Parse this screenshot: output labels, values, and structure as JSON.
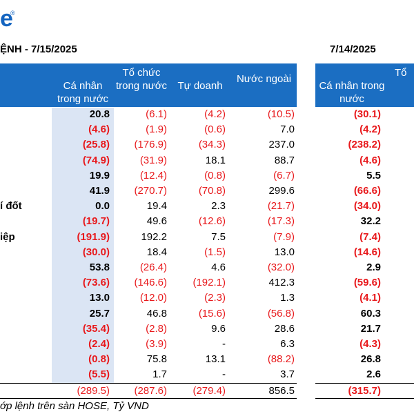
{
  "header": {
    "logo": "e",
    "logo_mark": "®",
    "title": "ỆNH - 7/15/2025",
    "title_previous": "7/14/2025"
  },
  "table": {
    "columns": [
      "Cá nhân trong nước",
      "Tổ chức trong nước",
      "Tự doanh",
      "Nước ngoài"
    ],
    "columns_previous": [
      "Cá nhân trong nước",
      "Tổ"
    ],
    "rows": [
      {
        "values": [
          "20.8",
          "(6.1)",
          "(4.2)",
          "(10.5)"
        ],
        "previous": "(30.1)"
      },
      {
        "values": [
          "(4.6)",
          "(1.9)",
          "(0.6)",
          "7.0"
        ],
        "previous": "(4.2)"
      },
      {
        "values": [
          "(25.8)",
          "(176.9)",
          "(34.3)",
          "237.0"
        ],
        "previous": "(238.2)"
      },
      {
        "values": [
          "(74.9)",
          "(31.9)",
          "18.1",
          "88.7"
        ],
        "previous": "(4.6)"
      },
      {
        "values": [
          "19.9",
          "(12.4)",
          "(0.8)",
          "(6.7)"
        ],
        "previous": "5.5"
      },
      {
        "values": [
          "41.9",
          "(270.7)",
          "(70.8)",
          "299.6"
        ],
        "previous": "(66.6)"
      },
      {
        "label": "í đốt",
        "values": [
          "0.0",
          "19.4",
          "2.3",
          "(21.7)"
        ],
        "previous": "(34.0)"
      },
      {
        "values": [
          "(19.7)",
          "49.6",
          "(12.6)",
          "(17.3)"
        ],
        "previous": "32.2"
      },
      {
        "label": "iệp",
        "values": [
          "(191.9)",
          "192.2",
          "7.5",
          "(7.9)"
        ],
        "previous": "(7.4)"
      },
      {
        "values": [
          "(30.0)",
          "18.4",
          "(1.5)",
          "13.0"
        ],
        "previous": "(14.6)"
      },
      {
        "values": [
          "53.8",
          "(26.4)",
          "4.6",
          "(32.0)"
        ],
        "previous": "2.9"
      },
      {
        "values": [
          "(73.6)",
          "(146.6)",
          "(192.1)",
          "412.3"
        ],
        "previous": "(59.6)"
      },
      {
        "values": [
          "13.0",
          "(12.0)",
          "(2.3)",
          "1.3"
        ],
        "previous": "(4.1)"
      },
      {
        "values": [
          "25.7",
          "46.8",
          "(15.6)",
          "(56.8)"
        ],
        "previous": "60.3"
      },
      {
        "values": [
          "(35.4)",
          "(2.8)",
          "9.6",
          "28.6"
        ],
        "previous": "21.7"
      },
      {
        "values": [
          "(2.4)",
          "(3.9)",
          "-",
          "6.3"
        ],
        "previous": "(4.3)"
      },
      {
        "values": [
          "(0.8)",
          "75.8",
          "13.1",
          "(88.2)"
        ],
        "previous": "26.8"
      },
      {
        "values": [
          "(5.5)",
          "1.7",
          "-",
          "3.7"
        ],
        "previous": "2.6"
      }
    ],
    "total": {
      "values": [
        "(289.5)",
        "(287.6)",
        "(279.4)",
        "856.5"
      ],
      "previous": "(315.7)"
    }
  },
  "footnote": "ớp lệnh trên sàn HOSE, Tỷ VND"
}
